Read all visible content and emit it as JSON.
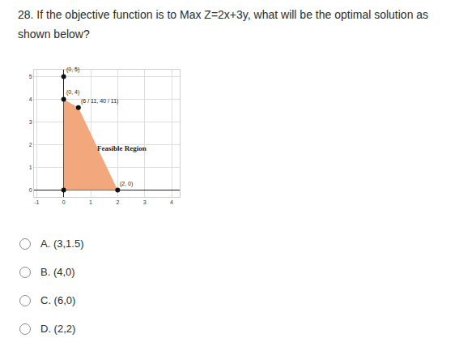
{
  "question": [
    "28. If the objective function is to Max Z=2x+3y, what will be the optimal solution as",
    "shown below?"
  ],
  "options": [
    "A. (3,1.5)",
    "B. (4,0)",
    "C. (6,0)",
    "D. (2,2)"
  ],
  "chart_data": {
    "type": "scatter",
    "grid": true,
    "xlim": [
      -1.1,
      4.3
    ],
    "ylim": [
      -0.3,
      5.3
    ],
    "xticks": [
      -1,
      0,
      1,
      2,
      3,
      4
    ],
    "yticks": [
      0,
      1,
      2,
      3,
      4,
      5
    ],
    "region": {
      "name": "Feasible Region",
      "color": "#f2a77c",
      "x": [
        0,
        0,
        0.545,
        2
      ],
      "y": [
        0,
        4,
        3.636,
        0
      ],
      "label_x": 2.15,
      "label_y": 1.85
    },
    "points": [
      {
        "x": 0,
        "y": 5,
        "label": "(0, 5)"
      },
      {
        "x": 0,
        "y": 4,
        "label": "(0, 4)"
      },
      {
        "x": 0.545,
        "y": 3.636,
        "label": "(6 / 11, 40 / 11)"
      },
      {
        "x": 2,
        "y": 0,
        "label": "(2, 0)"
      },
      {
        "x": 0,
        "y": 0
      }
    ],
    "marker": "circle",
    "color": "#111111"
  }
}
